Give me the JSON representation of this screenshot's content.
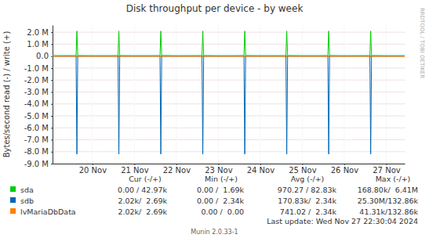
{
  "chart_data": {
    "type": "line",
    "title": "Disk throughput per device - by week",
    "y_label": "Bytes/second read (-) / write (+)",
    "watermark": "RRDTOOL / TOBI OETIKER",
    "footer": [
      "Last update: Wed Nov 27 22:30:04 2024",
      "Munin 2.0.33-1"
    ],
    "grid": true,
    "xlim": [
      19.55,
      27.94
    ],
    "xticks": [
      {
        "value": 20.5,
        "label": "20 Nov"
      },
      {
        "value": 21.5,
        "label": "21 Nov"
      },
      {
        "value": 22.5,
        "label": "22 Nov"
      },
      {
        "value": 23.5,
        "label": "23 Nov"
      },
      {
        "value": 24.5,
        "label": "24 Nov"
      },
      {
        "value": 25.5,
        "label": "25 Nov"
      },
      {
        "value": 26.5,
        "label": "26 Nov"
      },
      {
        "value": 27.5,
        "label": "27 Nov"
      }
    ],
    "ylim": [
      -9000000,
      2600000
    ],
    "yticks": [
      {
        "value": 2000000,
        "label": "2.0 M"
      },
      {
        "value": 1000000,
        "label": "1.0 M"
      },
      {
        "value": 0,
        "label": "0.0"
      },
      {
        "value": -1000000,
        "label": "-1.0 M"
      },
      {
        "value": -2000000,
        "label": "-2.0 M"
      },
      {
        "value": -3000000,
        "label": "-3.0 M"
      },
      {
        "value": -4000000,
        "label": "-4.0 M"
      },
      {
        "value": -5000000,
        "label": "-5.0 M"
      },
      {
        "value": -6000000,
        "label": "-6.0 M"
      },
      {
        "value": -7000000,
        "label": "-7.0 M"
      },
      {
        "value": -8000000,
        "label": "-8.0 M"
      },
      {
        "value": -9000000,
        "label": "-9.0 M"
      }
    ],
    "stats_header": [
      "Cur (-/+)",
      "Min (-/+)",
      "Avg (-/+)",
      "Max (-/+)"
    ],
    "x": [
      19.55,
      19.8,
      20.11,
      20.13,
      20.15,
      20.5,
      20.8,
      21.11,
      21.13,
      21.15,
      21.5,
      21.8,
      22.11,
      22.13,
      22.15,
      22.5,
      22.8,
      23.11,
      23.13,
      23.15,
      23.5,
      23.8,
      24.11,
      24.13,
      24.15,
      24.5,
      24.8,
      25.11,
      25.13,
      25.15,
      25.5,
      25.8,
      26.11,
      26.13,
      26.15,
      26.5,
      26.8,
      27.11,
      27.13,
      27.15,
      27.5,
      27.8,
      27.94
    ],
    "series": [
      {
        "name": "sda",
        "color": "#00cc00",
        "stats": [
          "0.00 / 42.97k",
          "0.00 /  1.69k",
          "970.27 / 82.83k",
          "168.80k/  6.41M"
        ],
        "values": [
          40000,
          44000,
          45000,
          2100000,
          50000,
          40000,
          42000,
          46000,
          2100000,
          48000,
          41000,
          43000,
          44000,
          2100000,
          52000,
          39000,
          42000,
          45000,
          2100000,
          49000,
          40000,
          41000,
          47000,
          2100000,
          50000,
          42000,
          43000,
          44000,
          2100000,
          51000,
          40000,
          42000,
          46000,
          2100000,
          48000,
          41000,
          44000,
          45000,
          2100000,
          50000,
          40000,
          42000,
          42970
        ],
        "read": [
          -900,
          -1000,
          -1000,
          -20000,
          -1500,
          -800,
          -900,
          -1000,
          -20000,
          -1500,
          -800,
          -900,
          -1000,
          -20000,
          -1500,
          -800,
          -900,
          -1000,
          -20000,
          -1500,
          -800,
          -900,
          -1000,
          -20000,
          -1500,
          -800,
          -900,
          -1000,
          -20000,
          -1500,
          -800,
          -900,
          -1000,
          -20000,
          -1500,
          -800,
          -900,
          -1000,
          -20000,
          -1500,
          -800,
          -900,
          0
        ]
      },
      {
        "name": "sdb",
        "color": "#0066b3",
        "stats": [
          "2.02k/  2.69k",
          "0.00 /  2.34k",
          "170.83k/  2.34k",
          "25.30M/132.86k"
        ],
        "values": [
          2400,
          2500,
          2500,
          25000,
          2600,
          2300,
          2400,
          2500,
          25000,
          2600,
          2300,
          2400,
          2500,
          25000,
          2600,
          2300,
          2400,
          2500,
          25000,
          2600,
          2300,
          2400,
          2500,
          25000,
          2600,
          2300,
          2400,
          2500,
          25000,
          2600,
          2300,
          2400,
          2500,
          25000,
          2600,
          2300,
          2400,
          2500,
          25000,
          2600,
          2300,
          2400,
          2690
        ],
        "read": [
          -1800,
          -2000,
          -2000,
          -8200000,
          -2500,
          -1800,
          -1900,
          -2000,
          -8200000,
          -2500,
          -1800,
          -1900,
          -2000,
          -8200000,
          -2500,
          -1800,
          -1900,
          -2000,
          -8200000,
          -2500,
          -1800,
          -1900,
          -2000,
          -8200000,
          -2500,
          -1800,
          -1900,
          -2000,
          -8200000,
          -2500,
          -1800,
          -1900,
          -2000,
          -8200000,
          -2500,
          -1800,
          -1900,
          -2000,
          -8200000,
          -2500,
          -1800,
          -1900,
          -2020
        ]
      },
      {
        "name": "lvMariaDbData",
        "color": "#ff8000",
        "stats": [
          "2.02k/  2.69k",
          "0.00 /  0.00",
          "741.02 /  2.34k",
          "41.31k/132.86k"
        ],
        "values": [
          2400,
          2500,
          2500,
          25000,
          2600,
          2300,
          2400,
          2500,
          25000,
          2600,
          2300,
          2400,
          2500,
          25000,
          2600,
          2300,
          2400,
          2500,
          25000,
          2600,
          2300,
          2400,
          2500,
          25000,
          2600,
          2300,
          2400,
          2500,
          25000,
          2600,
          2300,
          2400,
          2500,
          25000,
          2600,
          2300,
          2400,
          2500,
          25000,
          2600,
          2300,
          2400,
          2690
        ],
        "read": [
          -1400,
          -1500,
          -1500,
          -40000,
          -2000,
          -1500,
          -1600,
          -1500,
          -40000,
          -2000,
          -1500,
          -1600,
          -1500,
          -40000,
          -2000,
          -1500,
          -1600,
          -1500,
          -40000,
          -2000,
          -1500,
          -1600,
          -1500,
          -40000,
          -2000,
          -1500,
          -1600,
          -1500,
          -40000,
          -2000,
          -1500,
          -1600,
          -1500,
          -40000,
          -2000,
          -1500,
          -1600,
          -1500,
          -40000,
          -2000,
          -1500,
          -1600,
          -2020
        ]
      }
    ]
  }
}
